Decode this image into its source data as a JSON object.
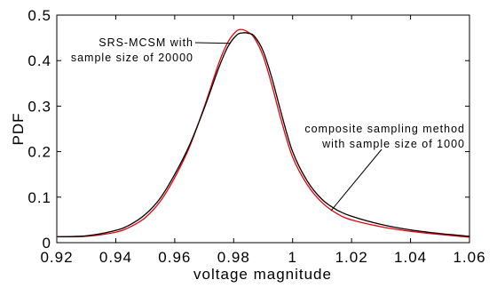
{
  "chart_data": {
    "type": "line",
    "xlabel": "voltage magnitude",
    "ylabel": "PDF",
    "xlim": [
      0.92,
      1.06
    ],
    "ylim": [
      0,
      0.5
    ],
    "grid": false,
    "xticks": [
      "0.92",
      "0.94",
      "0.96",
      "0.98",
      "1",
      "1.02",
      "1.04",
      "1.06"
    ],
    "yticks": [
      "0",
      "0.1",
      "0.2",
      "0.3",
      "0.4",
      "0.5"
    ],
    "series": [
      {
        "name": "SRS-MCSM with sample size of 20000",
        "color": "#000000",
        "x": [
          0.92,
          0.93,
          0.94,
          0.945,
          0.95,
          0.955,
          0.96,
          0.965,
          0.97,
          0.975,
          0.978,
          0.981,
          0.983,
          0.985,
          0.987,
          0.99,
          0.993,
          0.996,
          1.0,
          1.005,
          1.01,
          1.015,
          1.02,
          1.03,
          1.04,
          1.05,
          1.06
        ],
        "y": [
          0.013,
          0.015,
          0.027,
          0.04,
          0.062,
          0.097,
          0.15,
          0.214,
          0.295,
          0.385,
          0.43,
          0.456,
          0.461,
          0.46,
          0.454,
          0.421,
          0.361,
          0.288,
          0.2,
          0.135,
          0.095,
          0.072,
          0.058,
          0.04,
          0.028,
          0.02,
          0.014
        ]
      },
      {
        "name": "composite sampling method with sample size of 1000",
        "color": "#e8000b",
        "x": [
          0.92,
          0.93,
          0.94,
          0.945,
          0.95,
          0.955,
          0.96,
          0.965,
          0.97,
          0.975,
          0.978,
          0.981,
          0.983,
          0.985,
          0.987,
          0.99,
          0.993,
          0.996,
          1.0,
          1.005,
          1.01,
          1.015,
          1.02,
          1.03,
          1.04,
          1.05,
          1.06
        ],
        "y": [
          0.013,
          0.014,
          0.023,
          0.035,
          0.055,
          0.09,
          0.143,
          0.21,
          0.298,
          0.395,
          0.44,
          0.465,
          0.468,
          0.462,
          0.45,
          0.41,
          0.345,
          0.272,
          0.188,
          0.127,
          0.088,
          0.064,
          0.05,
          0.035,
          0.025,
          0.018,
          0.012
        ]
      }
    ],
    "annotations": [
      {
        "lines": [
          "SRS-MCSM with",
          "sample size of 20000"
        ],
        "target_series": 0,
        "target_x": 0.979,
        "target_y": 0.438
      },
      {
        "lines": [
          "composite sampling method",
          "with sample size of 1000"
        ],
        "target_series": 1,
        "target_x": 1.013,
        "target_y": 0.07
      }
    ]
  }
}
